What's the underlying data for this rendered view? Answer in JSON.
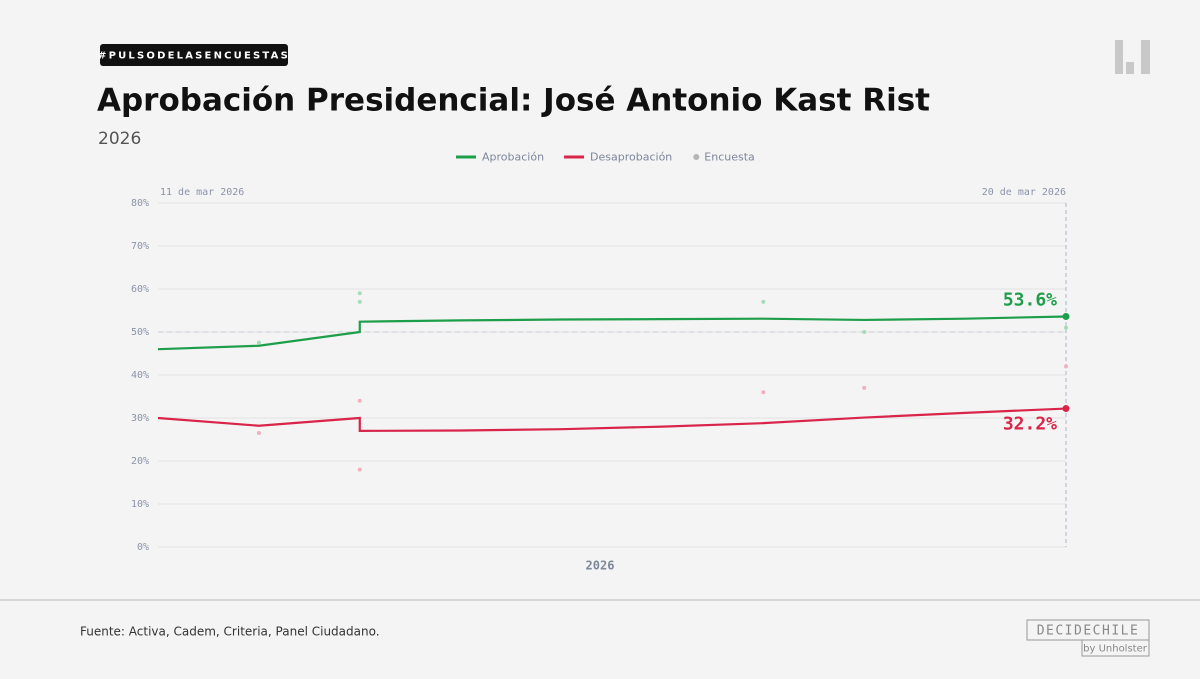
{
  "chart_data": {
    "type": "line",
    "hashtag": "#PULSODELASENCUESTAS",
    "title": "Aprobación Presidencial: José Antonio Kast Rist",
    "subtitle": "2026",
    "x_start_label": "11 de mar 2026",
    "x_end_label": "20 de mar 2026",
    "x_label": "2026",
    "source": "Fuente: Activa, Cadem, Criteria, Panel Ciudadano.",
    "brand": "DECIDECHILE",
    "brand_sub": "by Unholster",
    "xlim": [
      0,
      9
    ],
    "ylim": [
      0,
      80
    ],
    "yticks": [
      {
        "value": 0,
        "label": "0%"
      },
      {
        "value": 10,
        "label": "10%"
      },
      {
        "value": 20,
        "label": "20%"
      },
      {
        "value": 30,
        "label": "30%"
      },
      {
        "value": 40,
        "label": "40%"
      },
      {
        "value": 50,
        "label": "50%"
      },
      {
        "value": 60,
        "label": "60%"
      },
      {
        "value": 70,
        "label": "70%"
      },
      {
        "value": 80,
        "label": "80%"
      }
    ],
    "grid": true,
    "reference_y": 50,
    "series": [
      {
        "name": "Aprobación",
        "color": "#1e9e4a",
        "x": [
          0,
          1,
          2,
          2,
          3,
          4,
          5,
          6,
          7,
          8,
          9
        ],
        "values": [
          46,
          46.8,
          50,
          52.4,
          52.7,
          52.9,
          53,
          53.1,
          52.8,
          53.1,
          53.6
        ],
        "value_labels": [
          null,
          null,
          null,
          null,
          null,
          null,
          null,
          null,
          null,
          null,
          "53.6%"
        ]
      },
      {
        "name": "Desaprobación",
        "color": "#d9254a",
        "x": [
          0,
          1,
          2,
          2,
          3,
          4,
          5,
          6,
          7,
          8,
          9
        ],
        "values": [
          30,
          28.2,
          30,
          27,
          27.1,
          27.4,
          28,
          28.8,
          30.1,
          31.2,
          32.2
        ],
        "value_labels": [
          null,
          null,
          null,
          null,
          null,
          null,
          null,
          null,
          null,
          null,
          "32.2%"
        ]
      },
      {
        "name": "Encuesta",
        "color": "#b5b5b5",
        "type": "scatter",
        "x": [
          1,
          2,
          2,
          6,
          7,
          9,
          1,
          2,
          2,
          6,
          7,
          9
        ],
        "values": [
          47.5,
          59,
          57,
          57,
          50,
          51,
          26.5,
          34,
          18,
          36,
          37,
          42
        ],
        "colors": [
          "#a8dcb6",
          "#a8dcb6",
          "#a8dcb6",
          "#a8dcb6",
          "#a8dcb6",
          "#a8dcb6",
          "#f2b0bd",
          "#f2b0bd",
          "#f2b0bd",
          "#f2b0bd",
          "#f2b0bd",
          "#f2b0bd"
        ]
      }
    ]
  }
}
